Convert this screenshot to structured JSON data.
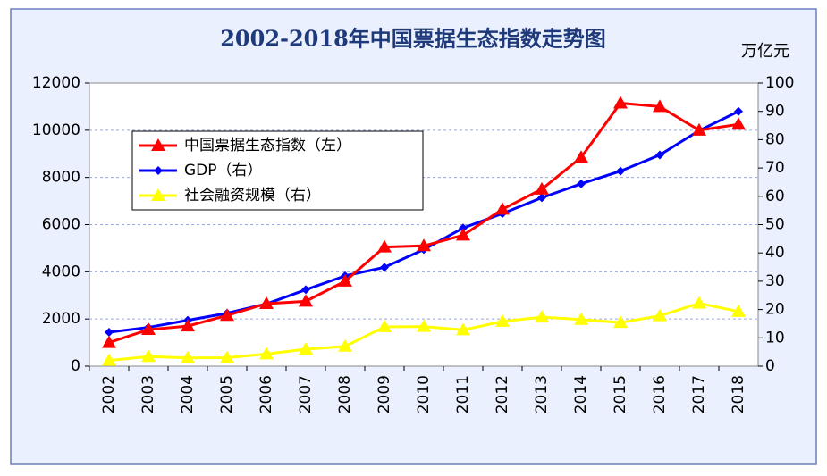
{
  "chart_data": {
    "type": "line",
    "title": "2002-2018年中国票据生态指数走势图",
    "y2_label": "万亿元",
    "categories": [
      "2002",
      "2003",
      "2004",
      "2005",
      "2006",
      "2007",
      "2008",
      "2009",
      "2010",
      "2011",
      "2012",
      "2013",
      "2014",
      "2015",
      "2016",
      "2017",
      "2018"
    ],
    "series": [
      {
        "name": "中国票据生态指数（左）",
        "color": "#ff0000",
        "marker": "triangle",
        "values": [
          1000,
          1550,
          1700,
          2150,
          2650,
          2750,
          3600,
          5050,
          5100,
          5550,
          6650,
          7500,
          8850,
          11150,
          11000,
          10000,
          10250
        ]
      },
      {
        "name": "GDP（右）",
        "color": "#0000ff",
        "marker": "diamond",
        "axis": "y2",
        "values": [
          12,
          13.7,
          16.2,
          18.7,
          22,
          27,
          31.9,
          34.9,
          41.2,
          48.8,
          53.9,
          59.5,
          64.4,
          68.9,
          74.6,
          83.2,
          90
        ]
      },
      {
        "name": "社会融资规模（右）",
        "color": "#ffff00",
        "marker": "triangle",
        "axis": "y2",
        "values": [
          2,
          3.4,
          2.9,
          3,
          4.3,
          6,
          7,
          13.9,
          14,
          12.8,
          15.8,
          17.3,
          16.5,
          15.4,
          17.8,
          22.2,
          19.3
        ]
      }
    ],
    "ylim": [
      0,
      12000
    ],
    "yticks": [
      0,
      2000,
      4000,
      6000,
      8000,
      10000,
      12000
    ],
    "y2lim": [
      0,
      100
    ],
    "y2ticks": [
      0,
      10,
      20,
      30,
      40,
      50,
      60,
      70,
      80,
      90,
      100
    ],
    "grid": true,
    "legend": "upper left"
  }
}
